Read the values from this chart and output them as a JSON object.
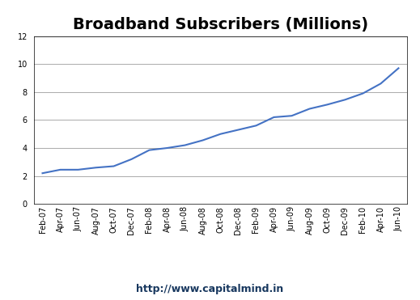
{
  "title": "Broadband Subscribers (Millions)",
  "footer": "http://www.capitalmind.in",
  "x_labels": [
    "Feb-07",
    "Apr-07",
    "Jun-07",
    "Aug-07",
    "Oct-07",
    "Dec-07",
    "Feb-08",
    "Apr-08",
    "Jun-08",
    "Aug-08",
    "Oct-08",
    "Dec-08",
    "Feb-09",
    "Apr-09",
    "Jun-09",
    "Aug-09",
    "Oct-09",
    "Dec-09",
    "Feb-10",
    "Apr-10",
    "Jun-10"
  ],
  "values": [
    2.2,
    2.45,
    2.45,
    2.6,
    2.7,
    3.2,
    3.85,
    4.0,
    4.2,
    4.55,
    5.0,
    5.3,
    5.6,
    6.2,
    6.3,
    6.8,
    7.1,
    7.45,
    7.9,
    8.6,
    9.7
  ],
  "line_color": "#4472C4",
  "line_width": 1.5,
  "ylim": [
    0,
    12
  ],
  "yticks": [
    0,
    2,
    4,
    6,
    8,
    10,
    12
  ],
  "grid_color": "#AAAAAA",
  "title_fontsize": 14,
  "tick_fontsize": 7,
  "footer_fontsize": 9,
  "footer_color": "#17375E",
  "bg_color": "#FFFFFF",
  "plot_area_bg": "#FFFFFF",
  "border_color": "#000000"
}
